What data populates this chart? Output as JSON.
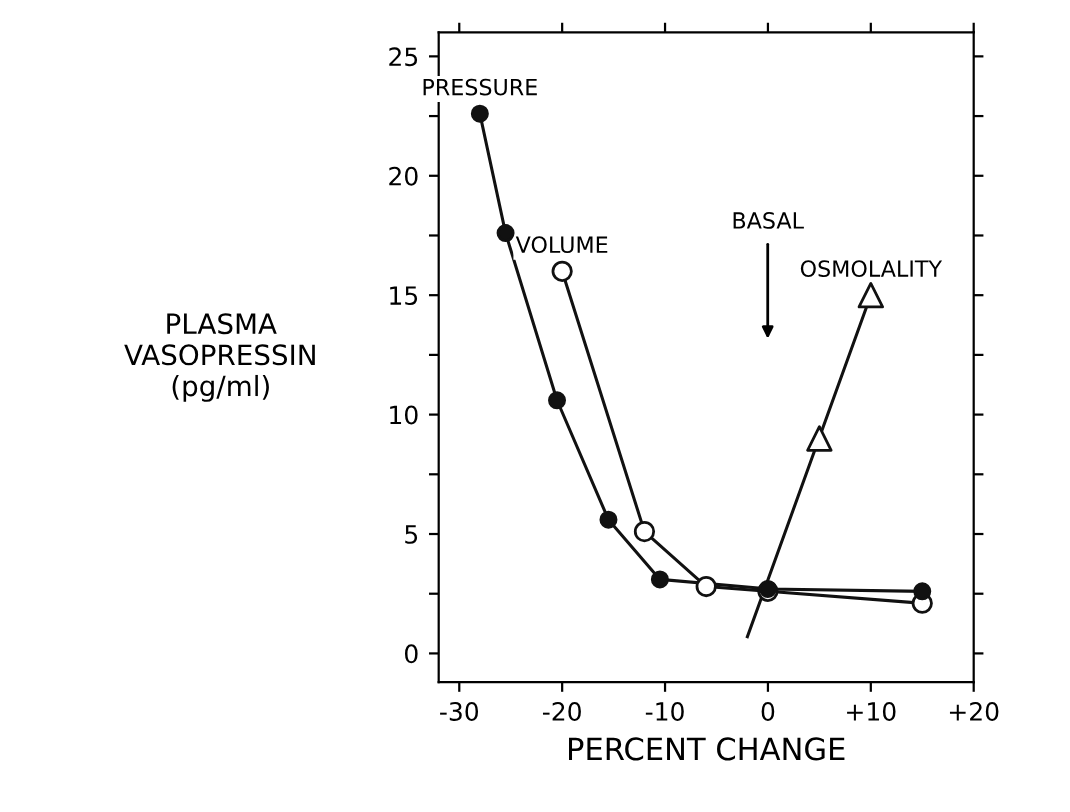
{
  "chart_data": {
    "type": "line",
    "xlabel": "PERCENT CHANGE",
    "ylabel": "PLASMA\nVASOPRESSIN\n(pg/ml)",
    "xlim": [
      -32,
      20
    ],
    "ylim": [
      -1.2,
      26
    ],
    "xticks": [
      {
        "value": -30,
        "label": "-30"
      },
      {
        "value": -20,
        "label": "-20"
      },
      {
        "value": -10,
        "label": "-10"
      },
      {
        "value": 0,
        "label": "0"
      },
      {
        "value": 10,
        "label": "+10"
      },
      {
        "value": 20,
        "label": "+20"
      }
    ],
    "yticks": [
      0,
      {
        "value": 2.5,
        "label": null
      },
      5,
      {
        "value": 7.5,
        "label": null
      },
      10,
      {
        "value": 12.5,
        "label": null
      },
      15,
      {
        "value": 17.5,
        "label": null
      },
      20,
      {
        "value": 22.5,
        "label": null
      },
      25
    ],
    "grid": false,
    "legend": false,
    "series": [
      {
        "name": "PRESSURE",
        "color": "#111111",
        "marker": "circle",
        "x": [
          -28,
          -25.5,
          -20.5,
          -15.5,
          -10.5,
          0,
          15
        ],
        "values": [
          22.6,
          17.6,
          10.6,
          5.6,
          3.1,
          2.7,
          2.6
        ]
      },
      {
        "name": "VOLUME",
        "color": "#111111",
        "marker": "circle",
        "colors": [
          "#ffffff",
          "#ffffff",
          "#ffffff",
          "#ffffff",
          "#ffffff"
        ],
        "x": [
          -20,
          -12,
          -6,
          0,
          15
        ],
        "values": [
          16,
          5.1,
          2.8,
          2.6,
          2.1
        ]
      },
      {
        "color": "#111111",
        "marker": "none",
        "x": [
          -2,
          10
        ],
        "values": [
          0.7,
          15
        ]
      },
      {
        "name": "OSMOLALITY",
        "type": "scatter",
        "color": "#111111",
        "marker": "triangle",
        "colors": [
          "#ffffff",
          "#ffffff"
        ],
        "x": [
          5,
          10
        ],
        "values": [
          9,
          15
        ]
      }
    ],
    "annotations": [
      "BASAL"
    ]
  }
}
